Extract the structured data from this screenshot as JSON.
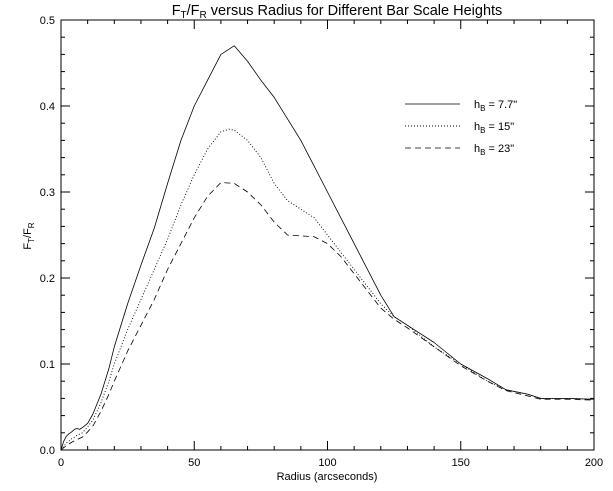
{
  "chart_data": {
    "type": "line",
    "title": {
      "main": "F",
      "sub1": "T",
      "mid": "/F",
      "sub2": "R",
      "rest": " versus Radius for Different Bar Scale Heights"
    },
    "xlabel": "Radius (arcseconds)",
    "ylabel": {
      "main": "F",
      "sub1": "T",
      "mid": "/F",
      "sub2": "R"
    },
    "xlim": [
      0,
      200
    ],
    "ylim": [
      0,
      0.5
    ],
    "xticks": [
      0,
      50,
      100,
      150,
      200
    ],
    "yticks": [
      0.0,
      0.1,
      0.2,
      0.3,
      0.4,
      0.5
    ],
    "ytick_labels": [
      "0.0",
      "0.1",
      "0.2",
      "0.3",
      "0.4",
      "0.5"
    ],
    "grid": false,
    "legend_position": "top-right",
    "series": [
      {
        "name": {
          "main": "h",
          "sub": "B",
          "rest": " = 7.7\""
        },
        "style": "solid",
        "points": [
          [
            0,
            0.0
          ],
          [
            1,
            0.01
          ],
          [
            2,
            0.016
          ],
          [
            3,
            0.019
          ],
          [
            4,
            0.021
          ],
          [
            5,
            0.024
          ],
          [
            6,
            0.025
          ],
          [
            7,
            0.024
          ],
          [
            8,
            0.026
          ],
          [
            10,
            0.031
          ],
          [
            12,
            0.042
          ],
          [
            15,
            0.065
          ],
          [
            18,
            0.095
          ],
          [
            20,
            0.12
          ],
          [
            25,
            0.17
          ],
          [
            30,
            0.215
          ],
          [
            35,
            0.258
          ],
          [
            40,
            0.31
          ],
          [
            45,
            0.36
          ],
          [
            50,
            0.4
          ],
          [
            55,
            0.43
          ],
          [
            60,
            0.46
          ],
          [
            65,
            0.47
          ],
          [
            70,
            0.452
          ],
          [
            75,
            0.43
          ],
          [
            80,
            0.41
          ],
          [
            85,
            0.385
          ],
          [
            90,
            0.36
          ],
          [
            95,
            0.33
          ],
          [
            100,
            0.3
          ],
          [
            105,
            0.27
          ],
          [
            110,
            0.24
          ],
          [
            115,
            0.21
          ],
          [
            120,
            0.18
          ],
          [
            125,
            0.155
          ],
          [
            130,
            0.145
          ],
          [
            140,
            0.125
          ],
          [
            150,
            0.1
          ],
          [
            160,
            0.083
          ],
          [
            167,
            0.07
          ],
          [
            175,
            0.065
          ],
          [
            180,
            0.06
          ],
          [
            190,
            0.06
          ],
          [
            200,
            0.059
          ]
        ]
      },
      {
        "name": {
          "main": "h",
          "sub": "B",
          "rest": " = 15\""
        },
        "style": "dotted",
        "points": [
          [
            0,
            0.0
          ],
          [
            2,
            0.008
          ],
          [
            4,
            0.013
          ],
          [
            6,
            0.017
          ],
          [
            8,
            0.02
          ],
          [
            10,
            0.027
          ],
          [
            12,
            0.035
          ],
          [
            15,
            0.055
          ],
          [
            18,
            0.08
          ],
          [
            20,
            0.1
          ],
          [
            25,
            0.14
          ],
          [
            30,
            0.175
          ],
          [
            35,
            0.21
          ],
          [
            40,
            0.245
          ],
          [
            45,
            0.285
          ],
          [
            50,
            0.32
          ],
          [
            55,
            0.35
          ],
          [
            60,
            0.37
          ],
          [
            63,
            0.373
          ],
          [
            65,
            0.372
          ],
          [
            70,
            0.36
          ],
          [
            75,
            0.34
          ],
          [
            80,
            0.31
          ],
          [
            85,
            0.29
          ],
          [
            90,
            0.28
          ],
          [
            95,
            0.27
          ],
          [
            100,
            0.25
          ],
          [
            105,
            0.23
          ],
          [
            110,
            0.21
          ],
          [
            115,
            0.19
          ],
          [
            120,
            0.17
          ],
          [
            125,
            0.155
          ],
          [
            130,
            0.145
          ],
          [
            140,
            0.12
          ],
          [
            150,
            0.1
          ],
          [
            160,
            0.08
          ],
          [
            167,
            0.07
          ],
          [
            175,
            0.065
          ],
          [
            180,
            0.06
          ],
          [
            190,
            0.06
          ],
          [
            200,
            0.059
          ]
        ]
      },
      {
        "name": {
          "main": "h",
          "sub": "B",
          "rest": " = 23\""
        },
        "style": "dashed",
        "points": [
          [
            0,
            0.0
          ],
          [
            2,
            0.005
          ],
          [
            4,
            0.009
          ],
          [
            6,
            0.012
          ],
          [
            8,
            0.015
          ],
          [
            10,
            0.021
          ],
          [
            12,
            0.028
          ],
          [
            15,
            0.045
          ],
          [
            18,
            0.065
          ],
          [
            20,
            0.08
          ],
          [
            25,
            0.115
          ],
          [
            30,
            0.145
          ],
          [
            35,
            0.175
          ],
          [
            40,
            0.21
          ],
          [
            45,
            0.24
          ],
          [
            50,
            0.27
          ],
          [
            55,
            0.295
          ],
          [
            60,
            0.311
          ],
          [
            65,
            0.31
          ],
          [
            70,
            0.3
          ],
          [
            75,
            0.285
          ],
          [
            80,
            0.265
          ],
          [
            85,
            0.25
          ],
          [
            90,
            0.249
          ],
          [
            95,
            0.248
          ],
          [
            100,
            0.24
          ],
          [
            105,
            0.225
          ],
          [
            110,
            0.205
          ],
          [
            115,
            0.185
          ],
          [
            120,
            0.165
          ],
          [
            125,
            0.152
          ],
          [
            130,
            0.142
          ],
          [
            140,
            0.12
          ],
          [
            150,
            0.098
          ],
          [
            160,
            0.08
          ],
          [
            167,
            0.069
          ],
          [
            175,
            0.063
          ],
          [
            180,
            0.059
          ],
          [
            190,
            0.059
          ],
          [
            200,
            0.058
          ]
        ]
      }
    ]
  }
}
